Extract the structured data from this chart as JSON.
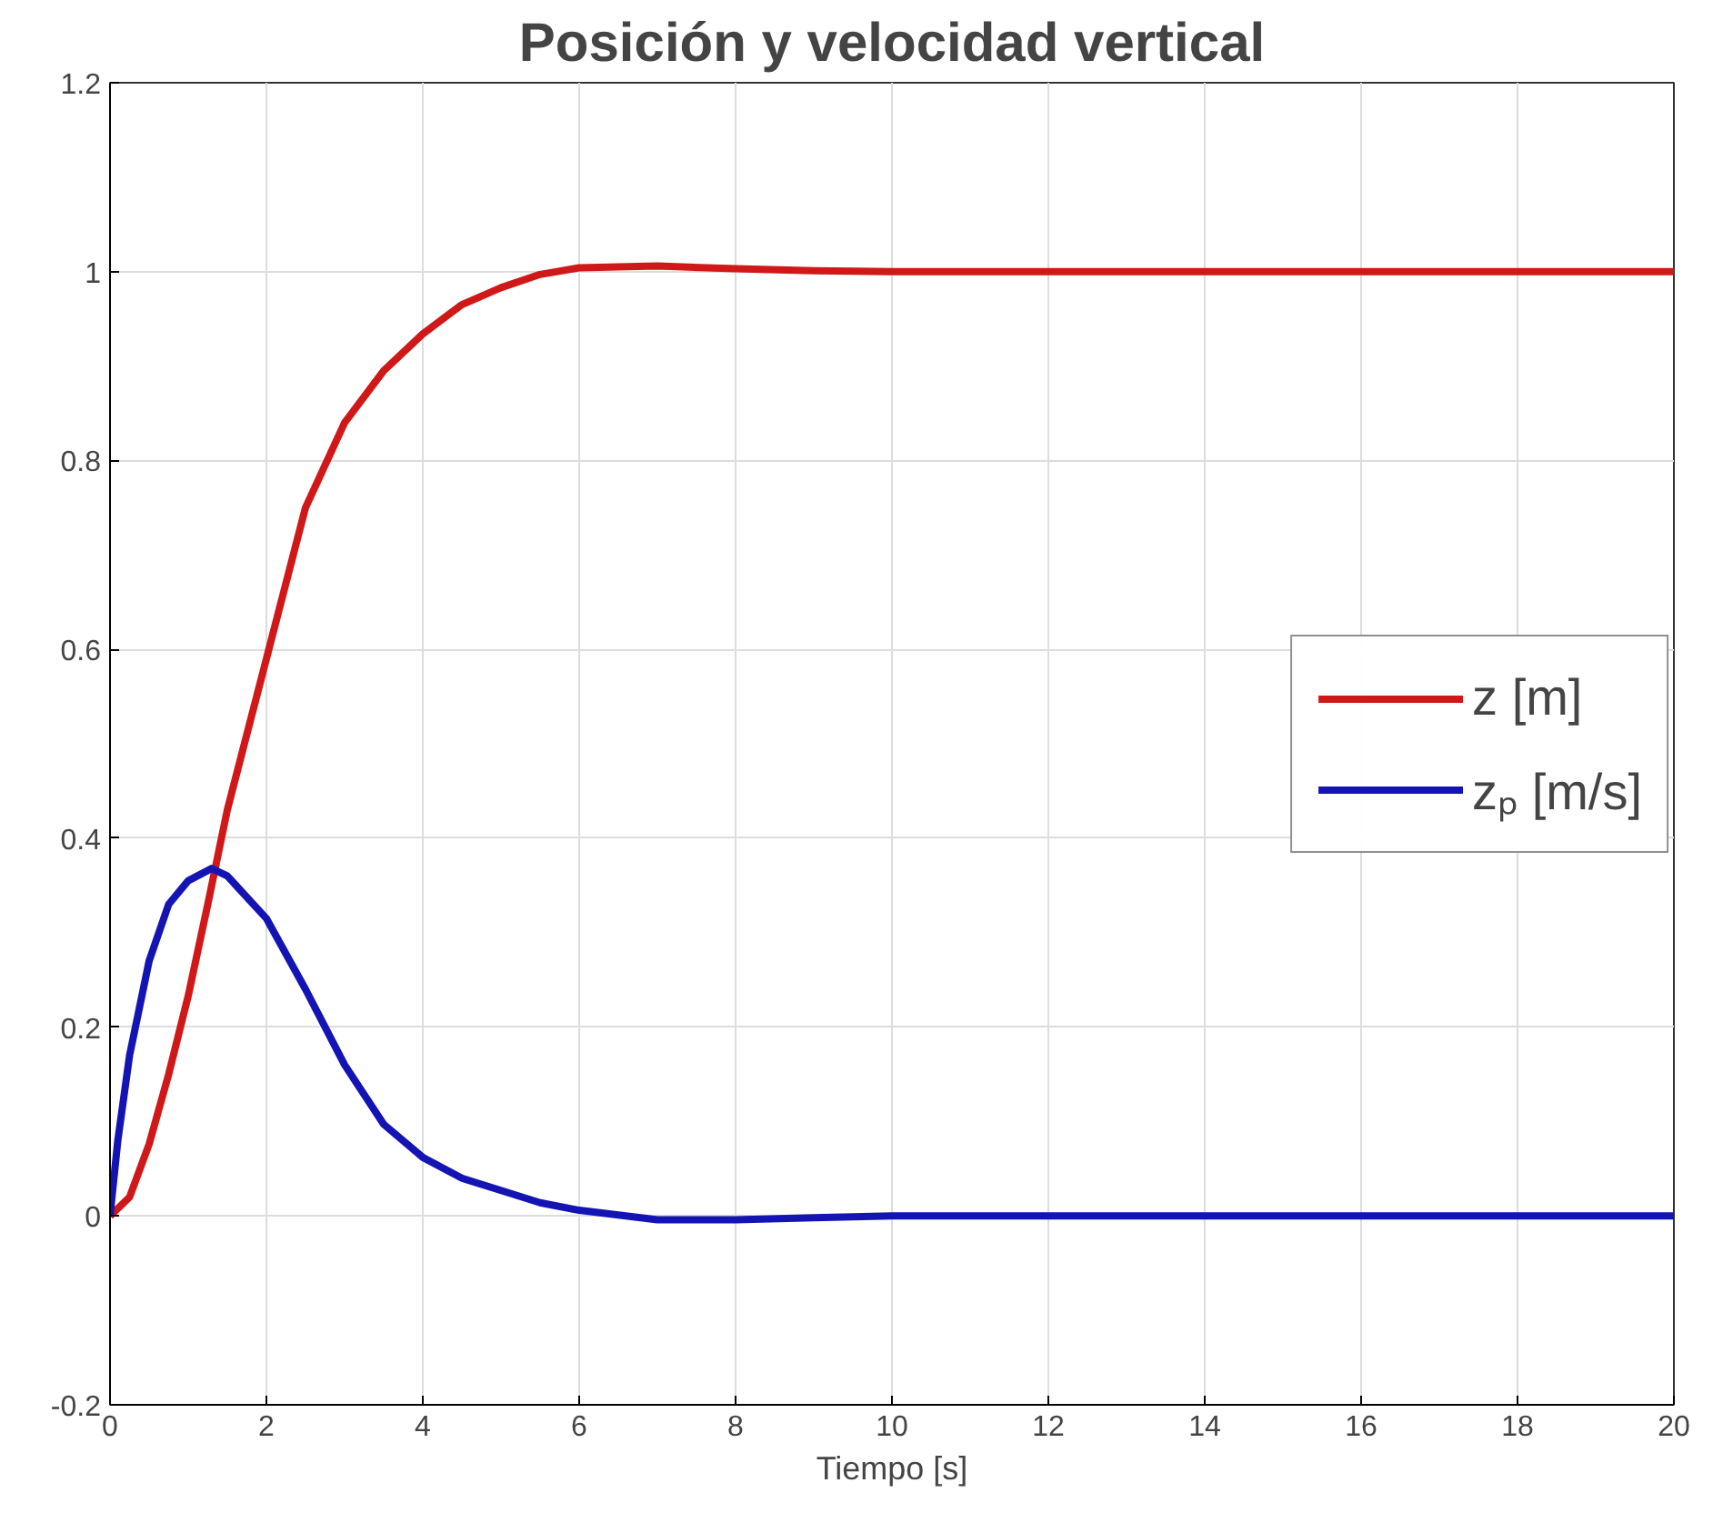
{
  "chart_data": {
    "type": "line",
    "title": "Posición y velocidad vertical",
    "xlabel": "Tiempo [s]",
    "xlim": [
      0,
      20
    ],
    "ylim": [
      -0.2,
      1.2
    ],
    "xticks": [
      0,
      2,
      4,
      6,
      8,
      10,
      12,
      14,
      16,
      18,
      20
    ],
    "yticks": [
      {
        "value": -0.2,
        "label": "-0.2"
      },
      0,
      {
        "value": 0.2,
        "label": "0.2"
      },
      {
        "value": 0.4,
        "label": "0.4"
      },
      {
        "value": 0.6,
        "label": "0.6"
      },
      {
        "value": 0.8,
        "label": "0.8"
      },
      1,
      {
        "value": 1.2,
        "label": "1.2"
      }
    ],
    "grid": true,
    "legend": "right",
    "line_style": "solid",
    "series": [
      {
        "name": "z [m]",
        "color": "#d01818",
        "x": [
          0,
          0.25,
          0.5,
          0.75,
          1,
          1.25,
          1.5,
          1.75,
          2,
          2.5,
          3,
          3.5,
          4,
          4.5,
          5,
          5.5,
          6,
          7,
          8,
          9,
          10,
          12,
          15,
          20
        ],
        "values": [
          0,
          0.02,
          0.076,
          0.15,
          0.233,
          0.33,
          0.43,
          0.51,
          0.59,
          0.75,
          0.84,
          0.895,
          0.934,
          0.965,
          0.983,
          0.997,
          1.004,
          1.006,
          1.003,
          1.001,
          1.0,
          1.0,
          1.0,
          1.0
        ]
      },
      {
        "name": "zₚ [m/s]",
        "color": "#1414b4",
        "x": [
          0,
          0.1,
          0.25,
          0.5,
          0.75,
          1,
          1.3,
          1.5,
          2,
          2.5,
          3,
          3.5,
          4,
          4.5,
          5,
          5.5,
          6,
          7,
          8,
          9,
          10,
          12,
          15,
          20
        ],
        "values": [
          0,
          0.08,
          0.17,
          0.27,
          0.33,
          0.355,
          0.368,
          0.36,
          0.315,
          0.24,
          0.16,
          0.097,
          0.062,
          0.04,
          0.027,
          0.014,
          0.006,
          -0.004,
          -0.004,
          -0.002,
          0,
          0,
          0,
          0
        ]
      }
    ]
  }
}
